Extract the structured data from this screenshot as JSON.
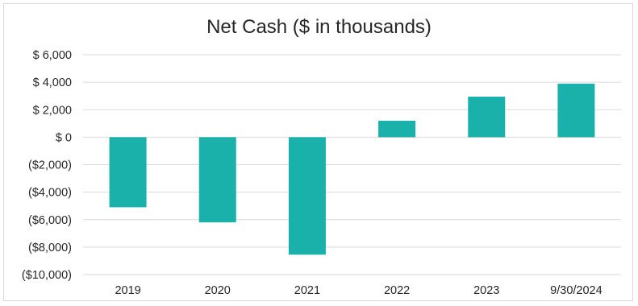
{
  "chart_data": {
    "type": "bar",
    "title": "Net Cash ($ in thousands)",
    "xlabel": "",
    "ylabel": "",
    "categories": [
      "2019",
      "2020",
      "2021",
      "2022",
      "2023",
      "9/30/2024"
    ],
    "values": [
      -5100,
      -6200,
      -8550,
      1200,
      2950,
      3900
    ],
    "ylim": [
      -10000,
      6000
    ],
    "yticks": [
      6000,
      4000,
      2000,
      0,
      -2000,
      -4000,
      -6000,
      -8000,
      -10000
    ],
    "ytick_labels": [
      "$ 6,000",
      "$ 4,000",
      "$ 2,000",
      "$ 0",
      "($2,000)",
      "($4,000)",
      "($6,000)",
      "($8,000)",
      "($10,000)"
    ],
    "grid": true,
    "legend": "none",
    "bar_color": "#1ab1ab",
    "grid_color": "#d9d9d9"
  }
}
